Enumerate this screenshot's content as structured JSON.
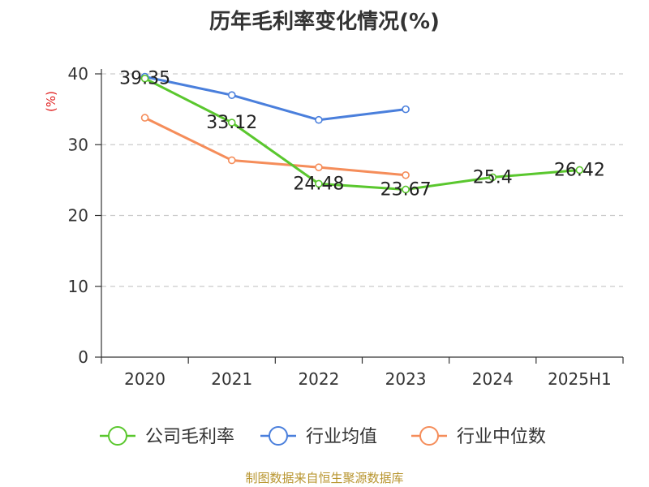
{
  "title": "历年毛利率变化情况(%)",
  "source": "制图数据来自恒生聚源数据库",
  "colors": {
    "company": "#5ac72e",
    "industry_avg": "#4a7fdc",
    "industry_median": "#f58d5a",
    "axis": "#333333",
    "grid": "#cccccc",
    "ylabel": "#e02020"
  },
  "chart_data": {
    "type": "line",
    "categories": [
      "2020",
      "2021",
      "2022",
      "2023",
      "2024",
      "2025H1"
    ],
    "ylabel": "(%)",
    "ylim": [
      0,
      40
    ],
    "yticks": [
      0,
      10,
      20,
      30,
      40
    ],
    "grid": "horizontal dashed",
    "legend_position": "bottom",
    "series": [
      {
        "name": "公司毛利率",
        "values": [
          39.35,
          33.12,
          24.48,
          23.67,
          25.4,
          26.42
        ],
        "labels": [
          "39.35",
          "33.12",
          "24.48",
          "23.67",
          "25.4",
          "26.42"
        ]
      },
      {
        "name": "行业均值",
        "values": [
          39.6,
          37.0,
          33.5,
          35.0,
          null,
          null
        ]
      },
      {
        "name": "行业中位数",
        "values": [
          33.8,
          27.8,
          26.8,
          25.7,
          null,
          null
        ]
      }
    ]
  }
}
